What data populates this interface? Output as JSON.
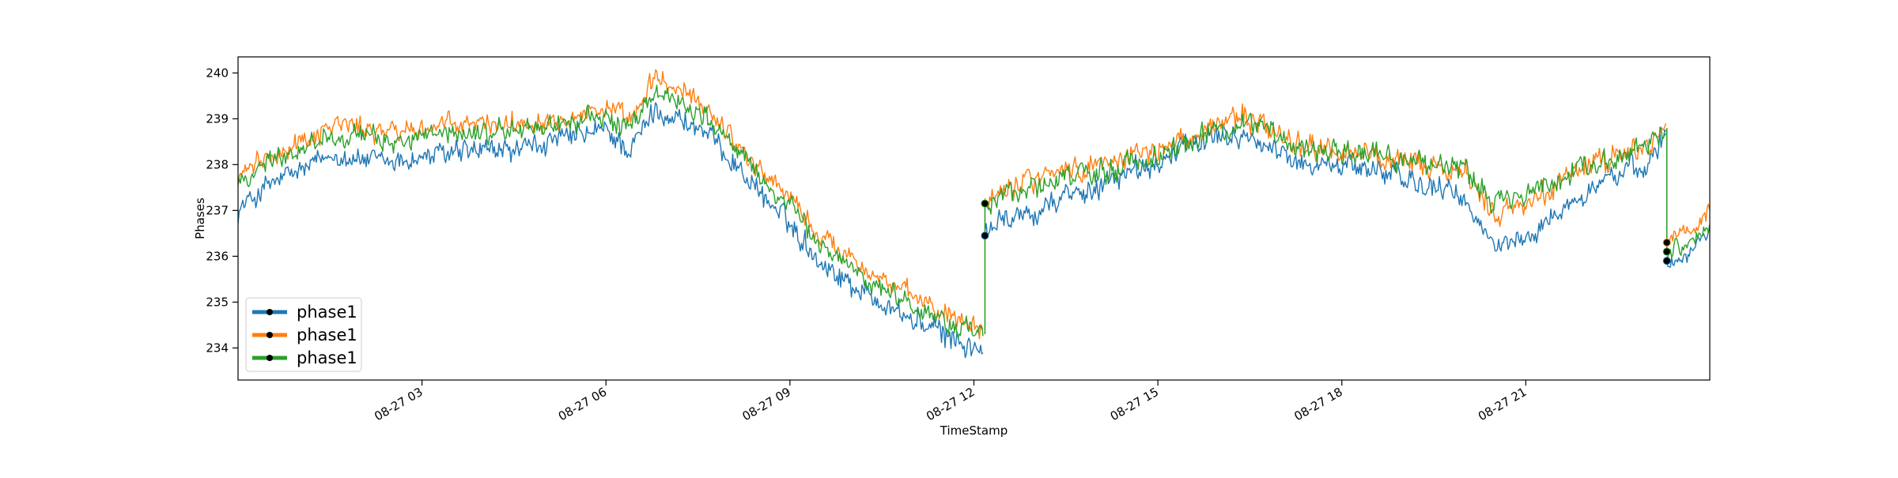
{
  "chart_data": {
    "type": "line",
    "title": "",
    "xlabel": "TimeStamp",
    "ylabel": "Phases",
    "x_tick_labels": [
      "08-27 03",
      "08-27 06",
      "08-27 09",
      "08-27 12",
      "08-27 15",
      "08-27 18",
      "08-27 21"
    ],
    "x_tick_hours": [
      3,
      6,
      9,
      12,
      15,
      18,
      21
    ],
    "xlim_hours": [
      0.0,
      24.0
    ],
    "y_tick_labels": [
      "234",
      "235",
      "236",
      "237",
      "238",
      "239",
      "240"
    ],
    "y_ticks": [
      234,
      235,
      236,
      237,
      238,
      239,
      240
    ],
    "ylim": [
      233.3,
      240.35
    ],
    "grid": false,
    "legend_position": "lower-left",
    "series": [
      {
        "name": "phase1",
        "color": "#1f77b4",
        "noise": 0.2,
        "x": [
          0.0,
          0.5,
          1.0,
          1.6,
          2.0,
          2.5,
          3.0,
          3.5,
          4.0,
          4.5,
          5.0,
          5.5,
          6.0,
          6.4,
          6.8,
          7.2,
          7.6,
          8.0,
          8.5,
          9.0,
          9.5,
          10.0,
          10.5,
          11.0,
          11.5,
          12.15
        ],
        "y": [
          237.0,
          237.55,
          237.85,
          238.25,
          238.1,
          238.05,
          238.15,
          238.25,
          238.3,
          238.3,
          238.45,
          238.6,
          238.75,
          238.3,
          239.2,
          239.0,
          238.7,
          238.2,
          237.4,
          236.7,
          235.9,
          235.4,
          235.0,
          234.6,
          234.3,
          233.9
        ],
        "markers": [
          [
            12.18,
            236.45
          ]
        ]
      },
      {
        "name": "phase1",
        "color": "#ff7f0e",
        "noise": 0.18,
        "x": [
          0.0,
          0.5,
          1.0,
          1.6,
          2.0,
          2.5,
          3.0,
          3.5,
          4.0,
          4.5,
          5.0,
          5.5,
          6.0,
          6.4,
          6.8,
          7.2,
          7.6,
          8.0,
          8.5,
          9.0,
          9.5,
          10.0,
          10.5,
          11.0,
          11.5,
          12.15
        ],
        "y": [
          237.7,
          238.2,
          238.5,
          238.9,
          238.8,
          238.7,
          238.8,
          238.85,
          238.9,
          238.9,
          239.0,
          239.1,
          239.25,
          238.9,
          239.9,
          239.6,
          239.3,
          238.7,
          237.9,
          237.3,
          236.4,
          236.0,
          235.5,
          235.1,
          234.8,
          234.5
        ],
        "markers": [
          [
            12.18,
            237.15
          ]
        ]
      },
      {
        "name": "phase1",
        "color": "#2ca02c",
        "noise": 0.18,
        "x": [
          0.0,
          0.5,
          1.0,
          1.6,
          2.0,
          2.5,
          3.0,
          3.5,
          4.0,
          4.5,
          5.0,
          5.5,
          6.0,
          6.4,
          6.8,
          7.2,
          7.6,
          8.0,
          8.5,
          9.0,
          9.5,
          10.0,
          10.5,
          11.0,
          11.5,
          12.15
        ],
        "y": [
          237.6,
          238.1,
          238.35,
          238.7,
          238.6,
          238.5,
          238.6,
          238.65,
          238.7,
          238.75,
          238.85,
          238.95,
          239.05,
          238.75,
          239.6,
          239.4,
          239.1,
          238.5,
          237.75,
          237.1,
          236.2,
          235.8,
          235.3,
          234.9,
          234.6,
          234.3
        ],
        "markers": [
          [
            12.18,
            237.15
          ]
        ]
      },
      {
        "name": "",
        "color": "#1f77b4",
        "noise": 0.2,
        "x": [
          12.18,
          12.5,
          13.0,
          13.5,
          14.0,
          14.5,
          15.0,
          15.5,
          16.0,
          16.5,
          17.0,
          17.5,
          18.0,
          18.5,
          19.0,
          19.5,
          20.0,
          20.5,
          21.0,
          21.5,
          22.0,
          22.5,
          23.0,
          23.3
        ],
        "y": [
          236.45,
          236.8,
          237.0,
          237.3,
          237.5,
          237.8,
          238.0,
          238.4,
          238.7,
          238.6,
          238.2,
          238.0,
          238.0,
          237.9,
          237.7,
          237.5,
          237.2,
          236.2,
          236.4,
          236.9,
          237.4,
          237.8,
          238.1,
          238.6
        ],
        "markers": []
      },
      {
        "name": "",
        "color": "#ff7f0e",
        "noise": 0.2,
        "x": [
          12.18,
          12.5,
          13.0,
          13.5,
          14.0,
          14.5,
          15.0,
          15.5,
          16.0,
          16.5,
          17.0,
          17.5,
          18.0,
          18.5,
          19.0,
          19.5,
          20.0,
          20.5,
          21.0,
          21.5,
          22.0,
          22.5,
          23.0,
          23.3
        ],
        "y": [
          237.15,
          237.6,
          237.7,
          237.9,
          238.0,
          238.2,
          238.3,
          238.6,
          238.9,
          239.0,
          238.6,
          238.4,
          238.3,
          238.2,
          238.0,
          237.9,
          237.8,
          236.9,
          237.1,
          237.6,
          238.0,
          238.2,
          238.4,
          238.9
        ],
        "markers": []
      },
      {
        "name": "",
        "color": "#2ca02c",
        "noise": 0.2,
        "x": [
          12.18,
          12.5,
          13.0,
          13.5,
          14.0,
          14.5,
          15.0,
          15.5,
          16.0,
          16.5,
          17.0,
          17.5,
          18.0,
          18.5,
          19.0,
          19.5,
          20.0,
          20.5,
          21.0,
          21.5,
          22.0,
          22.5,
          23.0,
          23.3
        ],
        "y": [
          237.15,
          237.4,
          237.5,
          237.7,
          237.8,
          238.0,
          238.2,
          238.5,
          238.8,
          238.9,
          238.6,
          238.4,
          238.3,
          238.3,
          238.1,
          238.0,
          237.9,
          237.2,
          237.3,
          237.7,
          238.0,
          238.2,
          238.4,
          238.8
        ],
        "markers": []
      },
      {
        "name": "",
        "color": "#1f77b4",
        "noise": 0.15,
        "x": [
          23.3,
          23.6,
          24.0
        ],
        "y": [
          235.9,
          236.0,
          236.5
        ],
        "markers": [
          [
            23.3,
            235.9
          ]
        ]
      },
      {
        "name": "",
        "color": "#ff7f0e",
        "noise": 0.15,
        "x": [
          23.3,
          23.6,
          24.0
        ],
        "y": [
          236.3,
          236.4,
          236.95
        ],
        "markers": [
          [
            23.3,
            236.3
          ]
        ]
      },
      {
        "name": "",
        "color": "#2ca02c",
        "noise": 0.15,
        "x": [
          23.3,
          23.6,
          24.0
        ],
        "y": [
          236.1,
          236.2,
          236.7
        ],
        "markers": [
          [
            23.3,
            236.1
          ]
        ]
      }
    ],
    "legend": [
      {
        "label": "phase1",
        "color": "#1f77b4"
      },
      {
        "label": "phase1",
        "color": "#ff7f0e"
      },
      {
        "label": "phase1",
        "color": "#2ca02c"
      }
    ]
  }
}
